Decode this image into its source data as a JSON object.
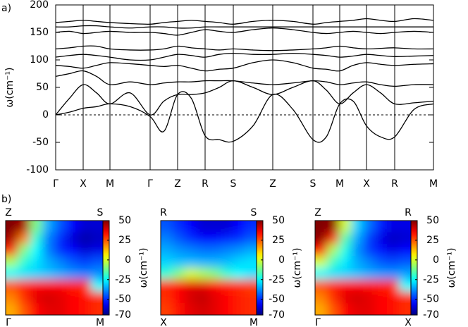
{
  "chart_data": [
    {
      "type": "line",
      "panel_label": "a)",
      "ylabel": "ω(cm⁻¹)",
      "color": "#000000",
      "zero_line": true,
      "xlim": [
        0,
        536
      ],
      "ylim": [
        -100,
        200
      ],
      "yticks": [
        -100,
        -50,
        0,
        50,
        100,
        150,
        200
      ],
      "xticks": [
        {
          "value": 0,
          "label": "Γ"
        },
        {
          "value": 39,
          "label": "X"
        },
        {
          "value": 77,
          "label": "M"
        },
        {
          "value": 134,
          "label": "Γ"
        },
        {
          "value": 173,
          "label": "Z"
        },
        {
          "value": 212,
          "label": "R"
        },
        {
          "value": 252,
          "label": "S"
        },
        {
          "value": 308,
          "label": "Z"
        },
        {
          "value": 365,
          "label": "S"
        },
        {
          "value": 403,
          "label": "M"
        },
        {
          "value": 441,
          "label": "X"
        },
        {
          "value": 481,
          "label": "R"
        },
        {
          "value": 536,
          "label": "M"
        }
      ],
      "x": [
        0,
        19.5,
        39,
        58,
        77,
        105.5,
        134,
        153.5,
        173,
        192.5,
        212,
        232,
        252,
        280,
        308,
        336.5,
        365,
        384,
        403,
        422,
        441,
        461,
        481,
        508.5,
        536
      ],
      "series": [
        {
          "values": [
            0,
            5,
            12,
            15,
            20,
            15,
            -3,
            -30,
            37,
            30,
            -38,
            -45,
            -48,
            -20,
            37,
            10,
            -45,
            -40,
            20,
            25,
            -20,
            -40,
            -40,
            10,
            20
          ]
        },
        {
          "values": [
            0,
            30,
            55,
            40,
            20,
            40,
            0,
            25,
            37,
            37,
            40,
            50,
            62,
            50,
            37,
            50,
            62,
            45,
            20,
            40,
            55,
            40,
            20,
            22,
            25
          ]
        },
        {
          "values": [
            70,
            75,
            80,
            70,
            55,
            60,
            55,
            58,
            60,
            60,
            62,
            62,
            62,
            58,
            55,
            58,
            62,
            60,
            55,
            58,
            60,
            55,
            52,
            55,
            55
          ]
        },
        {
          "values": [
            90,
            88,
            85,
            90,
            95,
            93,
            90,
            88,
            90,
            85,
            80,
            83,
            85,
            95,
            100,
            95,
            85,
            83,
            80,
            90,
            95,
            92,
            90,
            92,
            93
          ]
        },
        {
          "values": [
            105,
            108,
            110,
            108,
            105,
            100,
            100,
            105,
            110,
            108,
            105,
            110,
            112,
            110,
            110,
            112,
            110,
            108,
            105,
            107,
            110,
            108,
            106,
            107,
            108
          ]
        },
        {
          "values": [
            120,
            122,
            125,
            125,
            120,
            118,
            118,
            120,
            125,
            122,
            120,
            118,
            120,
            118,
            117,
            118,
            120,
            122,
            125,
            122,
            120,
            121,
            122,
            120,
            120
          ]
        },
        {
          "values": [
            150,
            152,
            148,
            150,
            152,
            150,
            150,
            148,
            145,
            150,
            155,
            152,
            150,
            155,
            158,
            155,
            150,
            148,
            150,
            152,
            150,
            148,
            150,
            152,
            150
          ]
        },
        {
          "values": [
            160,
            160,
            162,
            162,
            160,
            158,
            160,
            160,
            158,
            158,
            160,
            160,
            160,
            160,
            160,
            160,
            160,
            160,
            160,
            160,
            160,
            160,
            160,
            160,
            160
          ]
        },
        {
          "values": [
            168,
            170,
            172,
            170,
            168,
            166,
            165,
            168,
            170,
            172,
            170,
            168,
            165,
            170,
            172,
            170,
            165,
            168,
            170,
            172,
            175,
            172,
            170,
            175,
            172
          ]
        }
      ]
    },
    {
      "type": "heatmap",
      "panel_label": "b)",
      "colormap": "jet",
      "colorbar_label": "ω(cm⁻¹)",
      "corner_labels": {
        "top_left": "Z",
        "top_right": "S",
        "bottom_left": "Γ",
        "bottom_right": "M"
      },
      "zlim": [
        -70,
        50
      ],
      "zticks": [
        50,
        25,
        0,
        -25,
        -50,
        -70
      ],
      "z": [
        [
          50,
          45,
          -10,
          -35,
          -45,
          -55,
          -60,
          -60
        ],
        [
          45,
          20,
          -20,
          -40,
          -50,
          -60,
          -65,
          -62
        ],
        [
          30,
          -10,
          -25,
          -40,
          -50,
          -55,
          -60,
          -58
        ],
        [
          -5,
          -20,
          -28,
          -35,
          -40,
          -45,
          -48,
          -45
        ],
        [
          -25,
          -28,
          -30,
          -32,
          -35,
          -38,
          -40,
          -38
        ],
        [
          25,
          30,
          35,
          35,
          35,
          32,
          30,
          -25
        ],
        [
          20,
          30,
          38,
          40,
          38,
          35,
          33,
          30
        ],
        [
          15,
          25,
          35,
          38,
          38,
          35,
          33,
          30
        ]
      ]
    },
    {
      "type": "heatmap",
      "colormap": "jet",
      "colorbar_label": "ω(cm⁻¹)",
      "corner_labels": {
        "top_left": "R",
        "top_right": "S",
        "bottom_left": "X",
        "bottom_right": "M"
      },
      "zlim": [
        -70,
        50
      ],
      "zticks": [
        50,
        25,
        0,
        -25,
        -50,
        -70
      ],
      "z": [
        [
          -45,
          -50,
          -55,
          -60,
          -60,
          -60,
          -55,
          -50
        ],
        [
          -40,
          -45,
          -50,
          -55,
          -55,
          -52,
          -50,
          -45
        ],
        [
          -35,
          -38,
          -40,
          -42,
          -42,
          -40,
          -38,
          -35
        ],
        [
          -30,
          -32,
          -33,
          -34,
          -34,
          -33,
          -30,
          -28
        ],
        [
          -20,
          -10,
          0,
          -5,
          -10,
          -20,
          -25,
          -28
        ],
        [
          30,
          35,
          38,
          38,
          35,
          32,
          30,
          28
        ],
        [
          30,
          35,
          40,
          42,
          38,
          35,
          32,
          30
        ],
        [
          28,
          33,
          38,
          40,
          38,
          35,
          32,
          30
        ]
      ]
    },
    {
      "type": "heatmap",
      "colormap": "jet",
      "colorbar_label": "ω(cm⁻¹)",
      "corner_labels": {
        "top_left": "Z",
        "top_right": "R",
        "bottom_left": "Γ",
        "bottom_right": "X"
      },
      "zlim": [
        -70,
        50
      ],
      "zticks": [
        50,
        25,
        0,
        -25,
        -50,
        -70
      ],
      "z": [
        [
          50,
          48,
          0,
          -30,
          -42,
          -52,
          -58,
          -58
        ],
        [
          48,
          30,
          -15,
          -35,
          -48,
          -58,
          -62,
          -60
        ],
        [
          35,
          -5,
          -22,
          -38,
          -48,
          -53,
          -58,
          -55
        ],
        [
          0,
          -18,
          -27,
          -35,
          -40,
          -45,
          -47,
          -45
        ],
        [
          -25,
          -28,
          -30,
          -32,
          -35,
          -37,
          -38,
          -36
        ],
        [
          25,
          30,
          35,
          35,
          34,
          32,
          30,
          -25
        ],
        [
          20,
          30,
          38,
          40,
          38,
          35,
          33,
          30
        ],
        [
          15,
          25,
          35,
          38,
          38,
          35,
          33,
          30
        ]
      ]
    }
  ]
}
